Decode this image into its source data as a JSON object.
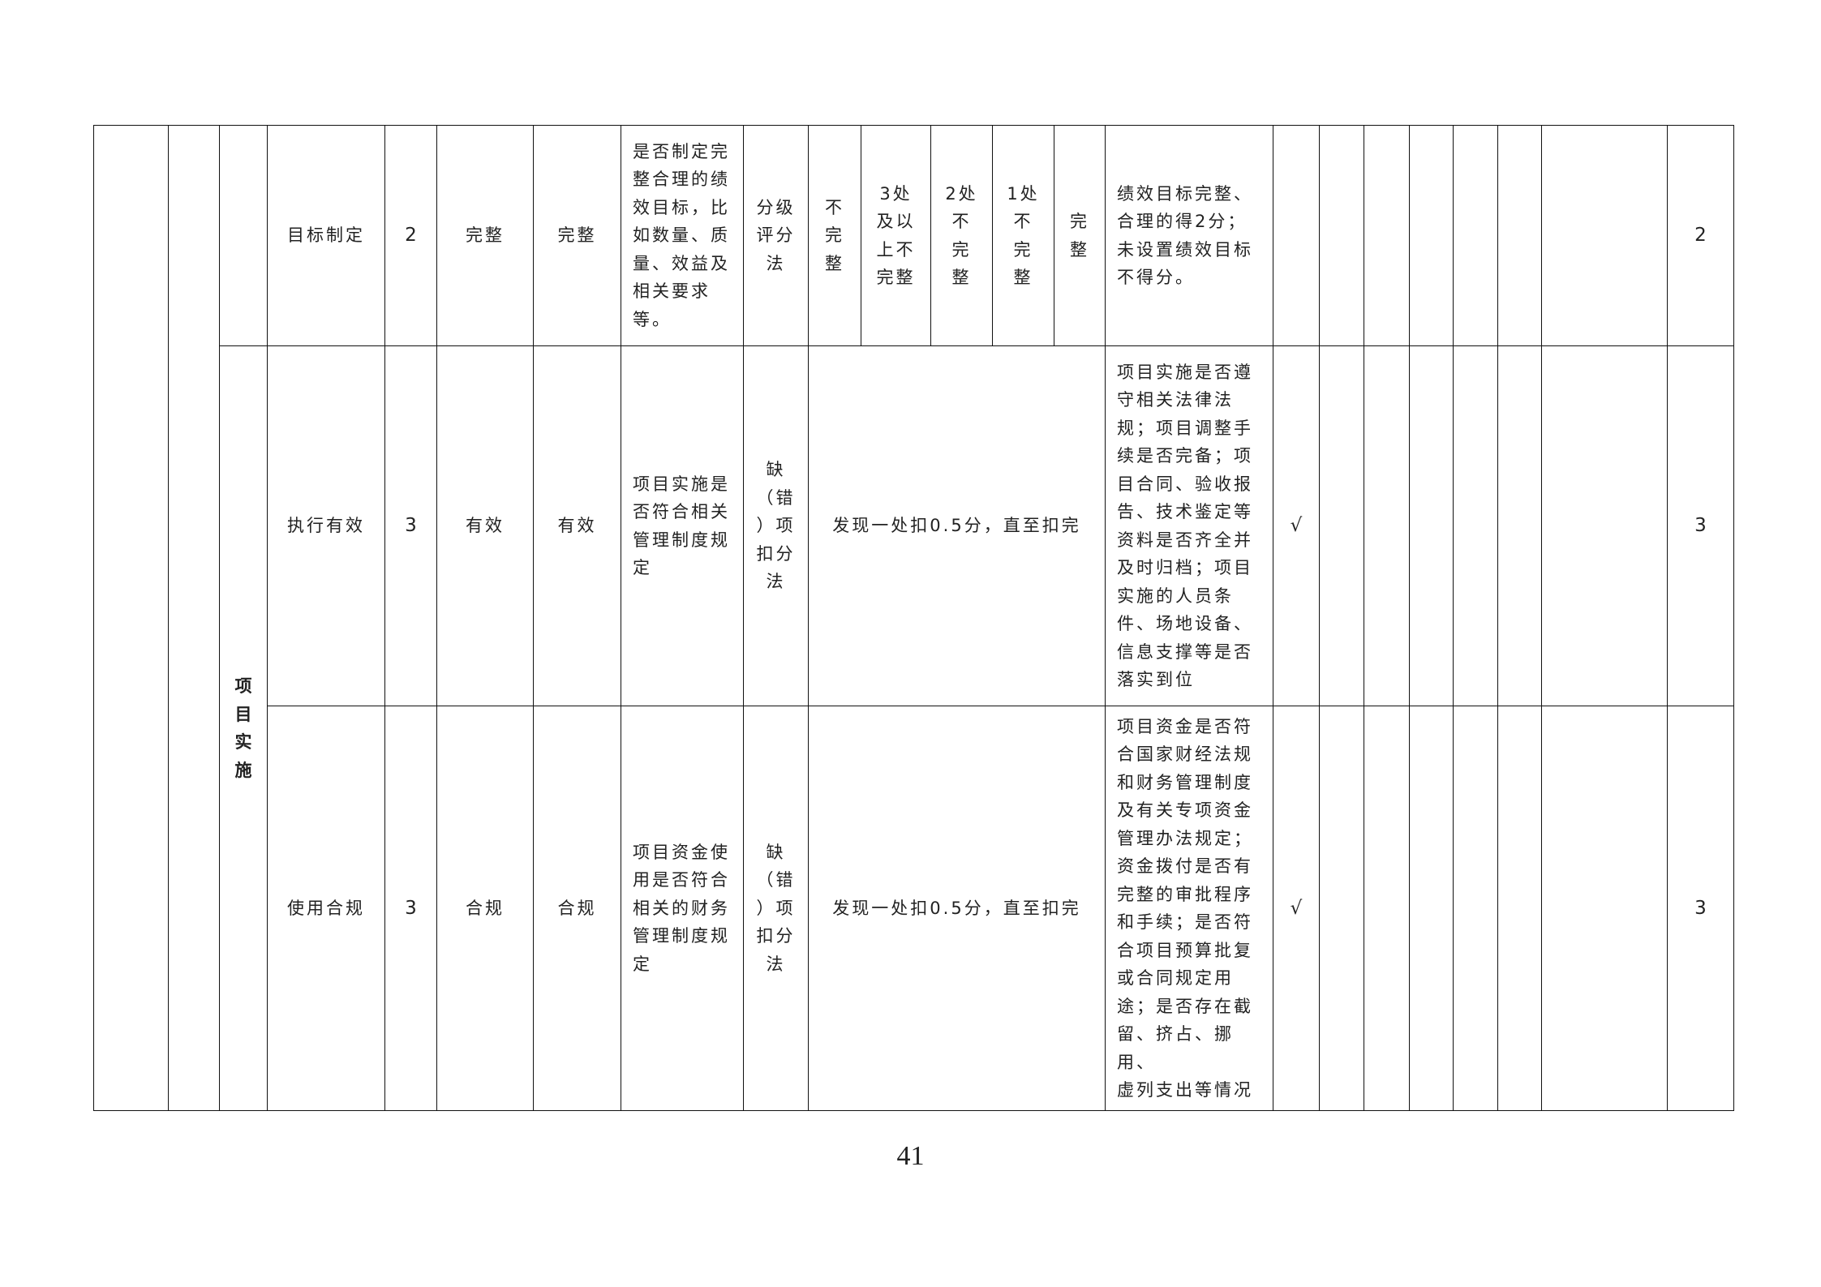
{
  "rows": [
    {
      "indicator": "目标制定",
      "weight": "2",
      "target": "完整",
      "actual": "完整",
      "description": "是否制定完\n整合理的绩\n效目标，比\n如数量、质\n量、效益及\n相关要求\n等。",
      "method": "分级\n评分\n法",
      "grades": [
        "不\n完\n整",
        "3处\n及以\n上不\n完整",
        "2处\n不\n完\n整",
        "1处\n不\n完\n整",
        "完\n整"
      ],
      "criteria": "绩效目标完整、\n合理的得2分；\n未设置绩效目标\n不得分。",
      "check": "",
      "score": "2"
    },
    {
      "indicator": "执行有效",
      "weight": "3",
      "target": "有效",
      "actual": "有效",
      "description": "项目实施是\n否符合相关\n管理制度规\n定",
      "method": "缺\n（错\n）项\n扣分\n法",
      "deduction": "发现一处扣0.5分，直至扣完",
      "criteria": "项目实施是否遵\n守相关法律法\n规；项目调整手\n续是否完备；项\n目合同、验收报\n告、技术鉴定等\n资料是否齐全并\n及时归档；项目\n实施的人员条\n件、场地设备、\n信息支撑等是否\n落实到位",
      "check": "√",
      "score": "3"
    },
    {
      "indicator": "使用合规",
      "weight": "3",
      "target": "合规",
      "actual": "合规",
      "description": "项目资金使\n用是否符合\n相关的财务\n管理制度规\n定",
      "method": "缺\n（错\n）项\n扣分\n法",
      "deduction": "发现一处扣0.5分，直至扣完",
      "criteria": "项目资金是否符\n合国家财经法规\n和财务管理制度\n及有关专项资金\n管理办法规定；\n资金拨付是否有\n完整的审批程序\n和手续；是否符\n合项目预算批复\n或合同规定用\n途；是否存在截\n留、挤占、挪用、\n虚列支出等情况",
      "check": "√",
      "score": "3"
    }
  ],
  "group_label": "项\n目\n实\n施",
  "page_number": "41"
}
